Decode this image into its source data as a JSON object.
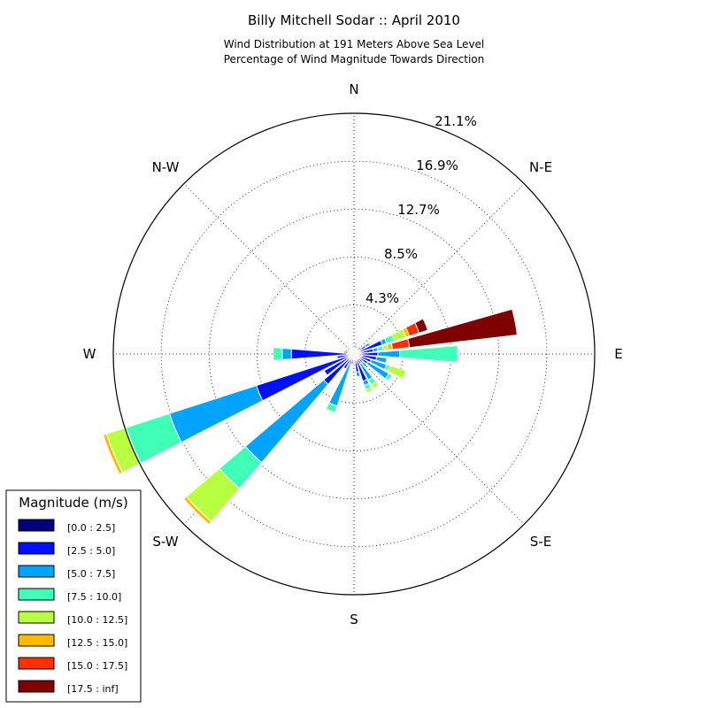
{
  "chart_data": {
    "type": "windrose",
    "title": "Billy Mitchell Sodar :: April 2010",
    "subtitle_lines": [
      "Wind Distribution at 191 Meters Above Sea Level",
      "Percentage of Wind Magnitude Towards Direction"
    ],
    "directions": [
      "N",
      "N-E",
      "E",
      "S-E",
      "S",
      "S-W",
      "W",
      "N-W"
    ],
    "radial_ticks": [
      "4.3%",
      "8.5%",
      "12.7%",
      "16.9%",
      "21.1%"
    ],
    "radial_values": [
      4.3,
      8.5,
      12.7,
      16.9,
      21.1
    ],
    "r_max": 21.1,
    "grid": true,
    "legend": {
      "title": "Magnitude (m/s)",
      "placement": "lower-left",
      "bins": [
        {
          "label": "[0.0 : 2.5]",
          "color": "#00007f"
        },
        {
          "label": "[2.5 : 5.0]",
          "color": "#0010ff"
        },
        {
          "label": "[5.0 : 7.5]",
          "color": "#00a4ff"
        },
        {
          "label": "[7.5 : 10.0]",
          "color": "#40ffb7"
        },
        {
          "label": "[10.0 : 12.5]",
          "color": "#b7ff40"
        },
        {
          "label": "[12.5 : 15.0]",
          "color": "#ffb900"
        },
        {
          "label": "[15.0 : 17.5]",
          "color": "#ff3000"
        },
        {
          "label": "[17.5 : inf]",
          "color": "#7f0000"
        }
      ]
    },
    "sectors": [
      {
        "dir": 0,
        "cum": [
          0.3,
          0.6
        ]
      },
      {
        "dir": 11.25,
        "cum": [
          0.3,
          0.8,
          1.0
        ]
      },
      {
        "dir": 22.5,
        "cum": [
          0.3,
          0.7
        ]
      },
      {
        "dir": 33.75,
        "cum": [
          0.3,
          0.6
        ]
      },
      {
        "dir": 45,
        "cum": [
          0.3,
          0.8
        ]
      },
      {
        "dir": 56.25,
        "cum": [
          0.4,
          1.2,
          1.6
        ]
      },
      {
        "dir": 67.5,
        "cum": [
          0.5,
          2.6,
          3.0,
          3.7,
          4.8,
          5.1,
          6.0,
          6.8
        ]
      },
      {
        "dir": 78.75,
        "cum": [
          0.6,
          1.7,
          2.1,
          2.6,
          3.0,
          3.4,
          4.9,
          14.4
        ]
      },
      {
        "dir": 90,
        "cum": [
          0.7,
          2.1,
          4.0,
          9.1
        ]
      },
      {
        "dir": 101.25,
        "cum": [
          0.7,
          2.0,
          2.9
        ]
      },
      {
        "dir": 112.5,
        "cum": [
          0.6,
          1.6,
          3.0,
          3.3,
          4.8
        ]
      },
      {
        "dir": 123.75,
        "cum": [
          0.6,
          1.4,
          3.5,
          3.8
        ]
      },
      {
        "dir": 135,
        "cum": [
          0.5,
          1.0,
          1.5
        ]
      },
      {
        "dir": 146.25,
        "cum": [
          0.5,
          1.0,
          2.6,
          3.1,
          3.5
        ]
      },
      {
        "dir": 157.5,
        "cum": [
          0.5,
          2.5,
          2.9,
          3.3,
          3.6
        ]
      },
      {
        "dir": 168.75,
        "cum": [
          0.5,
          1.6,
          2.0
        ]
      },
      {
        "dir": 180,
        "cum": [
          0.3,
          0.7
        ]
      },
      {
        "dir": 191.25,
        "cum": [
          0.4,
          0.9
        ]
      },
      {
        "dir": 202.5,
        "cum": [
          0.3,
          1.0,
          4.8,
          5.4
        ]
      },
      {
        "dir": 213.75,
        "cum": [
          0.5,
          1.5
        ]
      },
      {
        "dir": 225,
        "cum": [
          0.6,
          3.5,
          12.5,
          15.5,
          19.3,
          19.6
        ]
      },
      {
        "dir": 236.25,
        "cum": [
          0.5,
          3.0
        ]
      },
      {
        "dir": 247.5,
        "cum": [
          0.6,
          9.0,
          17.0,
          21.0,
          22.8,
          23.1
        ]
      },
      {
        "dir": 258.75,
        "cum": [
          0.5,
          1.5
        ]
      },
      {
        "dir": 270,
        "cum": [
          0.6,
          5.5,
          6.3,
          7.1
        ]
      },
      {
        "dir": 281.25,
        "cum": [
          0.4,
          0.9
        ]
      },
      {
        "dir": 292.5,
        "cum": [
          0.3,
          0.8
        ]
      },
      {
        "dir": 303.75,
        "cum": [
          0.3,
          0.6
        ]
      },
      {
        "dir": 315,
        "cum": [
          0.3,
          0.5
        ]
      },
      {
        "dir": 326.25,
        "cum": [
          0.3,
          0.5
        ]
      },
      {
        "dir": 337.5,
        "cum": [
          0.3,
          0.5
        ]
      },
      {
        "dir": 348.75,
        "cum": [
          0.3,
          0.6
        ]
      }
    ]
  }
}
